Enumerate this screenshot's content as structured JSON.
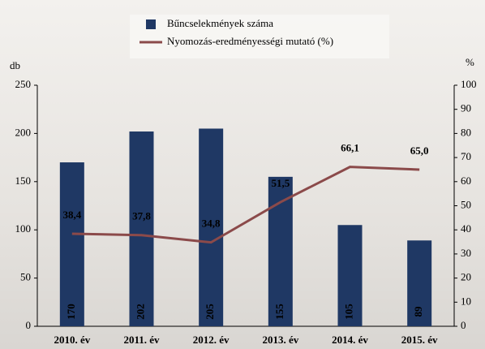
{
  "chart_data": {
    "type": "bar",
    "categories": [
      "2010. év",
      "2011. év",
      "2012. év",
      "2013. év",
      "2014. év",
      "2015. év"
    ],
    "series": [
      {
        "name": "Bűncselekmények száma",
        "type": "bar",
        "color": "#1f3864",
        "values": [
          170,
          202,
          205,
          155,
          105,
          89
        ]
      },
      {
        "name": "Nyomozás-eredményességi mutató (%)",
        "type": "line",
        "axis": "y2",
        "color": "#8b4a4a",
        "values": [
          38.4,
          37.8,
          34.8,
          51.5,
          66.1,
          65.0
        ],
        "value_labels": [
          "38,4",
          "37,8",
          "34,8",
          "51,5",
          "66,1",
          "65,0"
        ]
      }
    ],
    "ylabel": "db",
    "y2label": "%",
    "ylim": [
      0,
      250
    ],
    "yticks": [
      0,
      50,
      100,
      150,
      200,
      250
    ],
    "y2lim": [
      0,
      100
    ],
    "y2ticks": [
      0,
      10,
      20,
      30,
      40,
      50,
      60,
      70,
      80,
      90,
      100
    ]
  }
}
